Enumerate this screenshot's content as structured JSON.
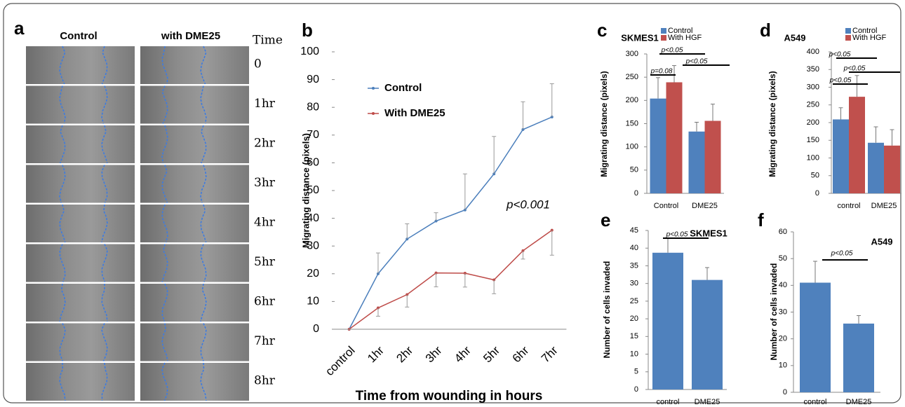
{
  "panel_a": {
    "label": "a",
    "columns": [
      "Control",
      "with DME25"
    ],
    "time_header": "Time",
    "times": [
      "0",
      "1hr",
      "2hr",
      "3hr",
      "4hr",
      "5hr",
      "6hr",
      "7hr",
      "8hr"
    ]
  },
  "chart_data": [
    {
      "label": "b",
      "type": "line",
      "categories": [
        "control",
        "1hr",
        "2hr",
        "3hr",
        "4hr",
        "5hr",
        "6hr",
        "7hr"
      ],
      "series": [
        {
          "name": "Control",
          "color": "#4a7ebb",
          "values": [
            0,
            20,
            32.5,
            39,
            43,
            56,
            72,
            76.5
          ],
          "errors": [
            0,
            7.5,
            5.5,
            3,
            13,
            13.5,
            10,
            12
          ],
          "error_direction": "up"
        },
        {
          "name": "With DME25",
          "color": "#be4b48",
          "values": [
            0,
            7.7,
            12.5,
            20.3,
            20.2,
            17.8,
            28.3,
            35.7
          ],
          "errors": [
            0,
            3,
            4.5,
            5,
            5,
            5,
            3,
            9
          ],
          "error_direction": "down"
        }
      ],
      "ylim": [
        0,
        100
      ],
      "yticks": [
        0,
        10,
        20,
        30,
        40,
        50,
        60,
        70,
        80,
        90,
        100
      ],
      "ylabel": "Migrating distance (pixels)",
      "xlabel": "Time from wounding in hours",
      "annotations": [
        "p<0.001"
      ]
    },
    {
      "label": "c",
      "type": "bar",
      "title": "SKMES1",
      "categories": [
        "Control",
        "DME25"
      ],
      "series": [
        {
          "name": "Control",
          "color": "#4f81bd",
          "values": [
            204,
            133
          ],
          "errors": [
            45,
            20
          ]
        },
        {
          "name": "With HGF",
          "color": "#c0504d",
          "values": [
            239,
            156
          ],
          "errors": [
            36,
            36
          ]
        }
      ],
      "ylim": [
        0,
        300
      ],
      "yticks": [
        0,
        50,
        100,
        150,
        200,
        250,
        300
      ],
      "ylabel": "Migrating distance (pixels)",
      "annotations": [
        "p<0.05",
        "p=0.08",
        "p<0.05"
      ]
    },
    {
      "label": "d",
      "type": "bar",
      "title": "A549",
      "categories": [
        "control",
        "DME25"
      ],
      "series": [
        {
          "name": "Control",
          "color": "#4f81bd",
          "values": [
            209,
            143
          ],
          "errors": [
            33,
            45
          ]
        },
        {
          "name": "With HGF",
          "color": "#c0504d",
          "values": [
            273,
            135
          ],
          "errors": [
            60,
            45
          ]
        }
      ],
      "ylim": [
        0,
        400
      ],
      "yticks": [
        0,
        50,
        100,
        150,
        200,
        250,
        300,
        350,
        400
      ],
      "ylabel": "Migrating distance (pixels)",
      "annotations": [
        "p<0.05",
        "p<0.05",
        "p<0.05"
      ]
    },
    {
      "label": "e",
      "type": "bar",
      "title": "SKMES1",
      "categories": [
        "control",
        "DME25"
      ],
      "values": [
        38.7,
        31
      ],
      "errors": [
        4,
        3.5
      ],
      "color": "#4f81bd",
      "ylim": [
        0,
        45
      ],
      "yticks": [
        0,
        5,
        10,
        15,
        20,
        25,
        30,
        35,
        40,
        45
      ],
      "ylabel": "Number of cells invaded",
      "annotations": [
        "p<0.05"
      ]
    },
    {
      "label": "f",
      "type": "bar",
      "title": "A549",
      "categories": [
        "control",
        "DME25"
      ],
      "values": [
        41,
        25.7
      ],
      "errors": [
        8,
        3
      ],
      "color": "#4f81bd",
      "ylim": [
        0,
        60
      ],
      "yticks": [
        0,
        10,
        20,
        30,
        40,
        50,
        60
      ],
      "ylabel": "Number of cells invaded",
      "annotations": [
        "p<0.05"
      ]
    }
  ]
}
